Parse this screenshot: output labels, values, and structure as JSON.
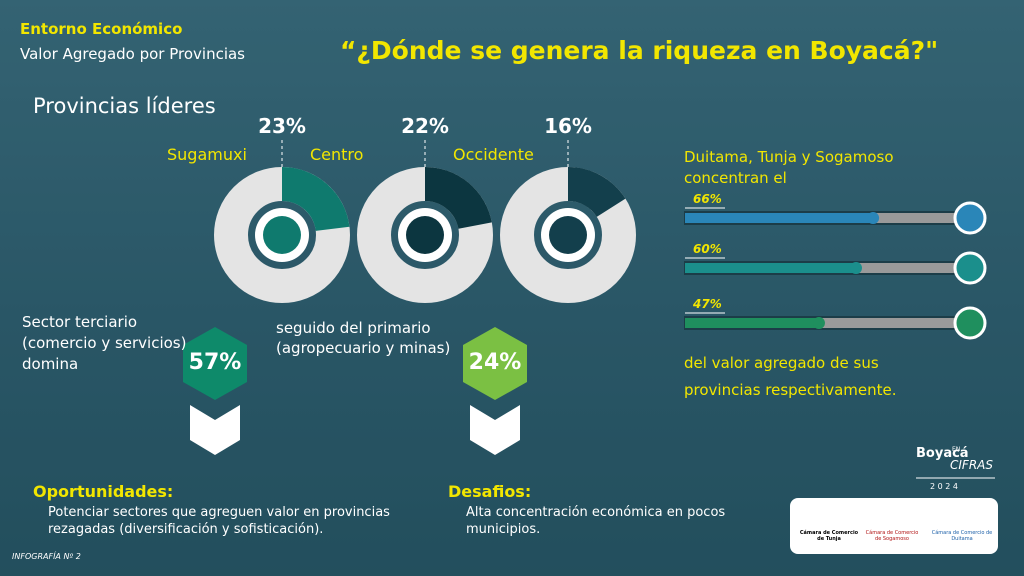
{
  "header": {
    "section": "Entorno Económico",
    "subtitle": "Valor Agregado por Provincias",
    "headline": "“¿Dónde se genera la riqueza en Boyacá?\""
  },
  "leaders": {
    "title": "Provincias líderes",
    "donuts": [
      {
        "name": "Sugamuxi",
        "value": 23,
        "label": "23%",
        "color": "#0f7a6e"
      },
      {
        "name": "Centro",
        "value": 22,
        "label": "22%",
        "color": "#0c3640"
      },
      {
        "name": "Occidente",
        "value": 16,
        "label": "16%",
        "color": "#133f4c"
      }
    ]
  },
  "concentration": {
    "intro": [
      "Duitama, Tunja y Sogamoso",
      "concentran el"
    ],
    "bars": [
      {
        "value": 66,
        "label": "66%",
        "color": "#2a86b8"
      },
      {
        "value": 60,
        "label": "60%",
        "color": "#1b8f8c"
      },
      {
        "value": 47,
        "label": "47%",
        "color": "#1f8f5e"
      }
    ],
    "outro": [
      "del valor agregado de sus",
      "provincias respectivamente."
    ]
  },
  "sectors": [
    {
      "lines": [
        "Sector terciario",
        "(comercio y servicios)",
        "domina"
      ],
      "value": "57%"
    },
    {
      "lines": [
        "seguido del primario",
        "(agropecuario y minas)"
      ],
      "value": "24%"
    }
  ],
  "opportunities": {
    "title": "Oportunidades:",
    "lines": [
      "Potenciar sectores que agreguen valor en provincias",
      "rezagadas (diversificación y sofisticación)."
    ]
  },
  "challenges": {
    "title": "Desafios:",
    "lines": [
      "Alta concentración económica en pocos",
      "municipios."
    ]
  },
  "footer": {
    "infographic": "INFOGRAFÍA Nº 2",
    "brand": "Boyacá",
    "brand_en": "EN",
    "brand_cifras": "CIFRAS",
    "year": "2 0 2 4",
    "logos": [
      "Cámara de Comercio de Tunja",
      "Cámara de Comercio de Sogamoso",
      "Cámara de Comercio de Duitama"
    ]
  }
}
